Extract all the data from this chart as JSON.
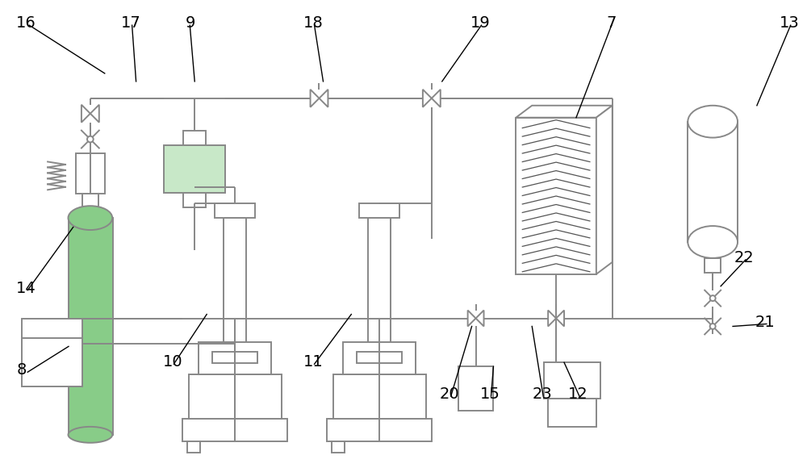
{
  "bg_color": "#ffffff",
  "line_color": "#888888",
  "line_width": 1.4,
  "label_color": "#000000",
  "label_fontsize": 14,
  "figsize": [
    10.0,
    5.85
  ],
  "dpi": 100,
  "green_fill": "#c8e8c8",
  "cyl_green": "#88cc88"
}
